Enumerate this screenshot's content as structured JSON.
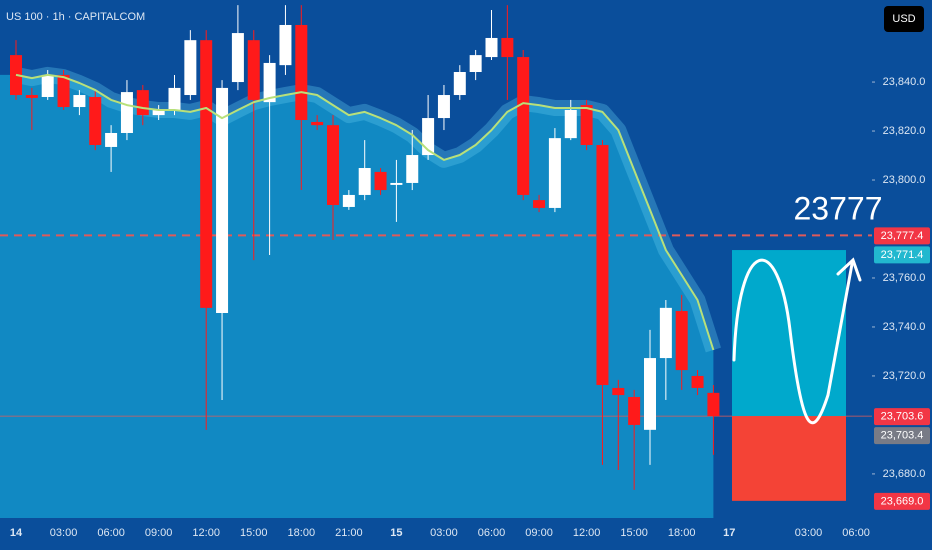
{
  "chart_data": {
    "type": "candlestick",
    "title": "US 100 · 1h · CAPITALCOM",
    "currency_button": "USD",
    "annotation": "23777",
    "categories": [
      "14",
      null,
      null,
      "03:00",
      null,
      null,
      "06:00",
      null,
      null,
      "09:00",
      null,
      null,
      "12:00",
      null,
      null,
      "15:00",
      null,
      null,
      "18:00",
      null,
      null,
      "21:00",
      null,
      null,
      "15",
      null,
      null,
      "03:00",
      null,
      null,
      "06:00",
      null,
      null,
      "09:00",
      null,
      null,
      "12:00",
      null,
      null,
      "15:00",
      null,
      null,
      "18:00",
      null,
      null,
      "17",
      null,
      null,
      null,
      null,
      "03:00",
      null,
      null,
      "06:00",
      null
    ],
    "candles": [
      [
        23851.0,
        23857.1,
        23832.7,
        23834.7
      ],
      [
        23834.7,
        23837.6,
        23820.4,
        23833.5
      ],
      [
        23833.9,
        23844.9,
        23832.7,
        23842.9
      ],
      [
        23842.9,
        23844.9,
        23828.6,
        23829.8
      ],
      [
        23829.8,
        23836.7,
        23826.5,
        23834.7
      ],
      [
        23833.9,
        23836.7,
        23812.2,
        23814.3
      ],
      [
        23813.5,
        23822.4,
        23803.3,
        23819.2
      ],
      [
        23819.2,
        23840.8,
        23816.3,
        23835.9
      ],
      [
        23836.7,
        23838.8,
        23822.4,
        23826.5
      ],
      [
        23826.5,
        23830.6,
        23824.5,
        23828.6
      ],
      [
        23828.6,
        23842.9,
        23826.5,
        23837.6
      ],
      [
        23834.7,
        23861.2,
        23832.7,
        23857.1
      ],
      [
        23857.1,
        23861.2,
        23698.0,
        23747.8
      ],
      [
        23745.7,
        23840.8,
        23710.2,
        23837.6
      ],
      [
        23840.0,
        23871.4,
        23836.7,
        23860.0
      ],
      [
        23857.1,
        23861.2,
        23767.3,
        23832.7
      ],
      [
        23831.8,
        23851.0,
        23769.4,
        23847.8
      ],
      [
        23846.9,
        23871.4,
        23842.9,
        23863.3
      ],
      [
        23863.3,
        23871.4,
        23795.9,
        23824.5
      ],
      [
        23823.7,
        23826.5,
        23820.4,
        23822.4
      ],
      [
        23822.4,
        23826.5,
        23775.5,
        23789.8
      ],
      [
        23789.0,
        23795.9,
        23787.8,
        23793.9
      ],
      [
        23793.9,
        23816.3,
        23791.8,
        23804.9
      ],
      [
        23803.3,
        23804.9,
        23793.9,
        23795.9
      ],
      [
        23798.0,
        23808.2,
        23782.9,
        23798.8
      ],
      [
        23798.8,
        23820.4,
        23795.9,
        23810.2
      ],
      [
        23810.2,
        23834.7,
        23808.2,
        23825.3
      ],
      [
        23825.3,
        23838.8,
        23820.4,
        23834.7
      ],
      [
        23834.7,
        23846.9,
        23832.7,
        23844.1
      ],
      [
        23844.1,
        23853.1,
        23840.8,
        23851.0
      ],
      [
        23850.2,
        23869.4,
        23849.0,
        23858.0
      ],
      [
        23858.0,
        23871.4,
        23832.7,
        23850.2
      ],
      [
        23850.2,
        23853.1,
        23791.8,
        23793.9
      ],
      [
        23791.8,
        23793.9,
        23786.9,
        23788.6
      ],
      [
        23788.6,
        23821.2,
        23786.9,
        23817.1
      ],
      [
        23817.1,
        23832.7,
        23816.3,
        23828.6
      ],
      [
        23830.6,
        23832.7,
        23812.2,
        23814.3
      ],
      [
        23814.3,
        23816.3,
        23683.7,
        23716.3
      ],
      [
        23715.1,
        23718.4,
        23681.6,
        23712.2
      ],
      [
        23711.4,
        23714.3,
        23673.5,
        23700.0
      ],
      [
        23698.0,
        23738.8,
        23683.7,
        23727.3
      ],
      [
        23727.3,
        23751.0,
        23710.2,
        23747.8
      ],
      [
        23746.5,
        23753.1,
        23714.3,
        23722.4
      ],
      [
        23720.0,
        23722.4,
        23712.2,
        23715.1
      ],
      [
        23713.1,
        23716.3,
        23687.8,
        23703.6
      ],
      null,
      null,
      null,
      null,
      null,
      null,
      null,
      null,
      null,
      null
    ],
    "up_color": "#ffffff",
    "down_color": "#ff1a1a",
    "indicator": {
      "color": "#b8e07a",
      "values": [
        23842.9,
        23841.6,
        23842.9,
        23842.0,
        23839.6,
        23836.7,
        23832.7,
        23830.6,
        23829.4,
        23828.6,
        23828.6,
        23827.8,
        23829.4,
        23825.3,
        23828.6,
        23831.8,
        23833.5,
        23834.7,
        23835.9,
        23834.7,
        23830.6,
        23826.5,
        23827.8,
        23825.3,
        23822.4,
        23818.4,
        23812.2,
        23808.2,
        23810.2,
        23814.3,
        23820.4,
        23827.8,
        23831.4,
        23830.6,
        23829.4,
        23829.4,
        23829.4,
        23827.8,
        23820.4,
        23804.1,
        23787.8,
        23771.4,
        23761.2,
        23751.0,
        23730.6,
        null,
        null,
        null,
        null,
        null,
        null,
        null,
        null,
        null,
        null
      ]
    },
    "ylim": [
      23662,
      23873.5
    ],
    "yticks": [
      {
        "value": 23680,
        "label": "23,680.0"
      },
      {
        "value": 23720,
        "label": "23,720.0"
      },
      {
        "value": 23740,
        "label": "23,740.0"
      },
      {
        "value": 23760,
        "label": "23,760.0"
      },
      {
        "value": 23800,
        "label": "23,800.0"
      },
      {
        "value": 23820,
        "label": "23,820.0"
      },
      {
        "value": 23840,
        "label": "23,840.0"
      }
    ],
    "price_labels": [
      {
        "value": 23777.4,
        "label": "23,777.4",
        "color": "#f23645"
      },
      {
        "value": 23771.4,
        "label": "23,771.4",
        "color": "#22b8cf"
      },
      {
        "value": 23703.6,
        "label": "23,703.6",
        "color": "#f23645"
      },
      {
        "value": 23703.4,
        "label": "23,703.4",
        "color": "#787b86"
      },
      {
        "value": 23669.0,
        "label": "23,669.0",
        "color": "#f23645"
      }
    ]
  }
}
